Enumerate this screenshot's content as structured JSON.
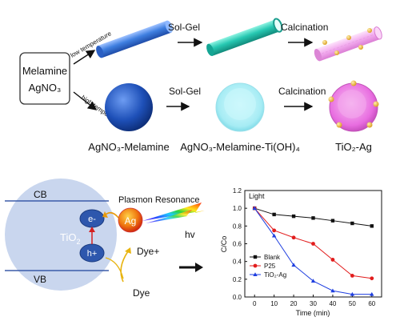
{
  "synthesis": {
    "precursor": {
      "line1": "Melamine",
      "line2": "AgNO₃"
    },
    "low_temp_label": "low temperature",
    "high_temp_label": "high temperature",
    "step_solgel": "Sol-Gel",
    "step_calcination": "Calcination",
    "products": {
      "sphere1": "AgNO₃-Melamine",
      "sphere2": "AgNO₃-Melamine-Ti(OH)₄",
      "sphere3": "TiO₂-Ag"
    }
  },
  "mechanism": {
    "cb": "CB",
    "vb": "VB",
    "core": "TiO",
    "core_sub": "2",
    "electron": "e-",
    "hole": "h+",
    "ag": "Ag",
    "plasmon": "Plasmon Resonance",
    "hv": "hv",
    "dye_plus": "Dye+",
    "dye": "Dye"
  },
  "colors": {
    "tube": "#3f7fe0",
    "tube_cyan": "#27c8b2",
    "tube_pink": "#f2a7ee",
    "sphere_blue": "#1e50b8",
    "sphere_cyan": "#a6ecf4",
    "sphere_pink": "#e86de0",
    "ag_dot": "#f0b93a",
    "cell": "#c9d6ee",
    "blank": "#111111",
    "p25": "#e21d1d",
    "tio2ag": "#1f3fe0"
  },
  "chart_data": {
    "type": "line",
    "annotation": "Light",
    "xlabel": "Time (min)",
    "ylabel": "C/Co",
    "xlim": [
      -5,
      65
    ],
    "ylim": [
      0,
      1.2
    ],
    "x_ticks": [
      0,
      10,
      20,
      30,
      40,
      50,
      60
    ],
    "y_ticks": [
      "0.0",
      "0.2",
      "0.4",
      "0.6",
      "0.8",
      "1.0",
      "1.2"
    ],
    "y_tick_values": [
      0,
      0.2,
      0.4,
      0.6,
      0.8,
      1.0,
      1.2
    ],
    "legend_position": "bottom-left",
    "x": [
      0,
      10,
      20,
      30,
      40,
      50,
      60
    ],
    "series": [
      {
        "name": "Blank",
        "marker": "square",
        "values": [
          1.0,
          0.93,
          0.91,
          0.89,
          0.86,
          0.83,
          0.8
        ]
      },
      {
        "name": "P25",
        "marker": "circle",
        "values": [
          1.0,
          0.75,
          0.67,
          0.6,
          0.42,
          0.24,
          0.21
        ]
      },
      {
        "name": "TiO₂-Ag",
        "marker": "triangle",
        "values": [
          1.0,
          0.69,
          0.36,
          0.18,
          0.07,
          0.03,
          0.03
        ]
      }
    ]
  }
}
